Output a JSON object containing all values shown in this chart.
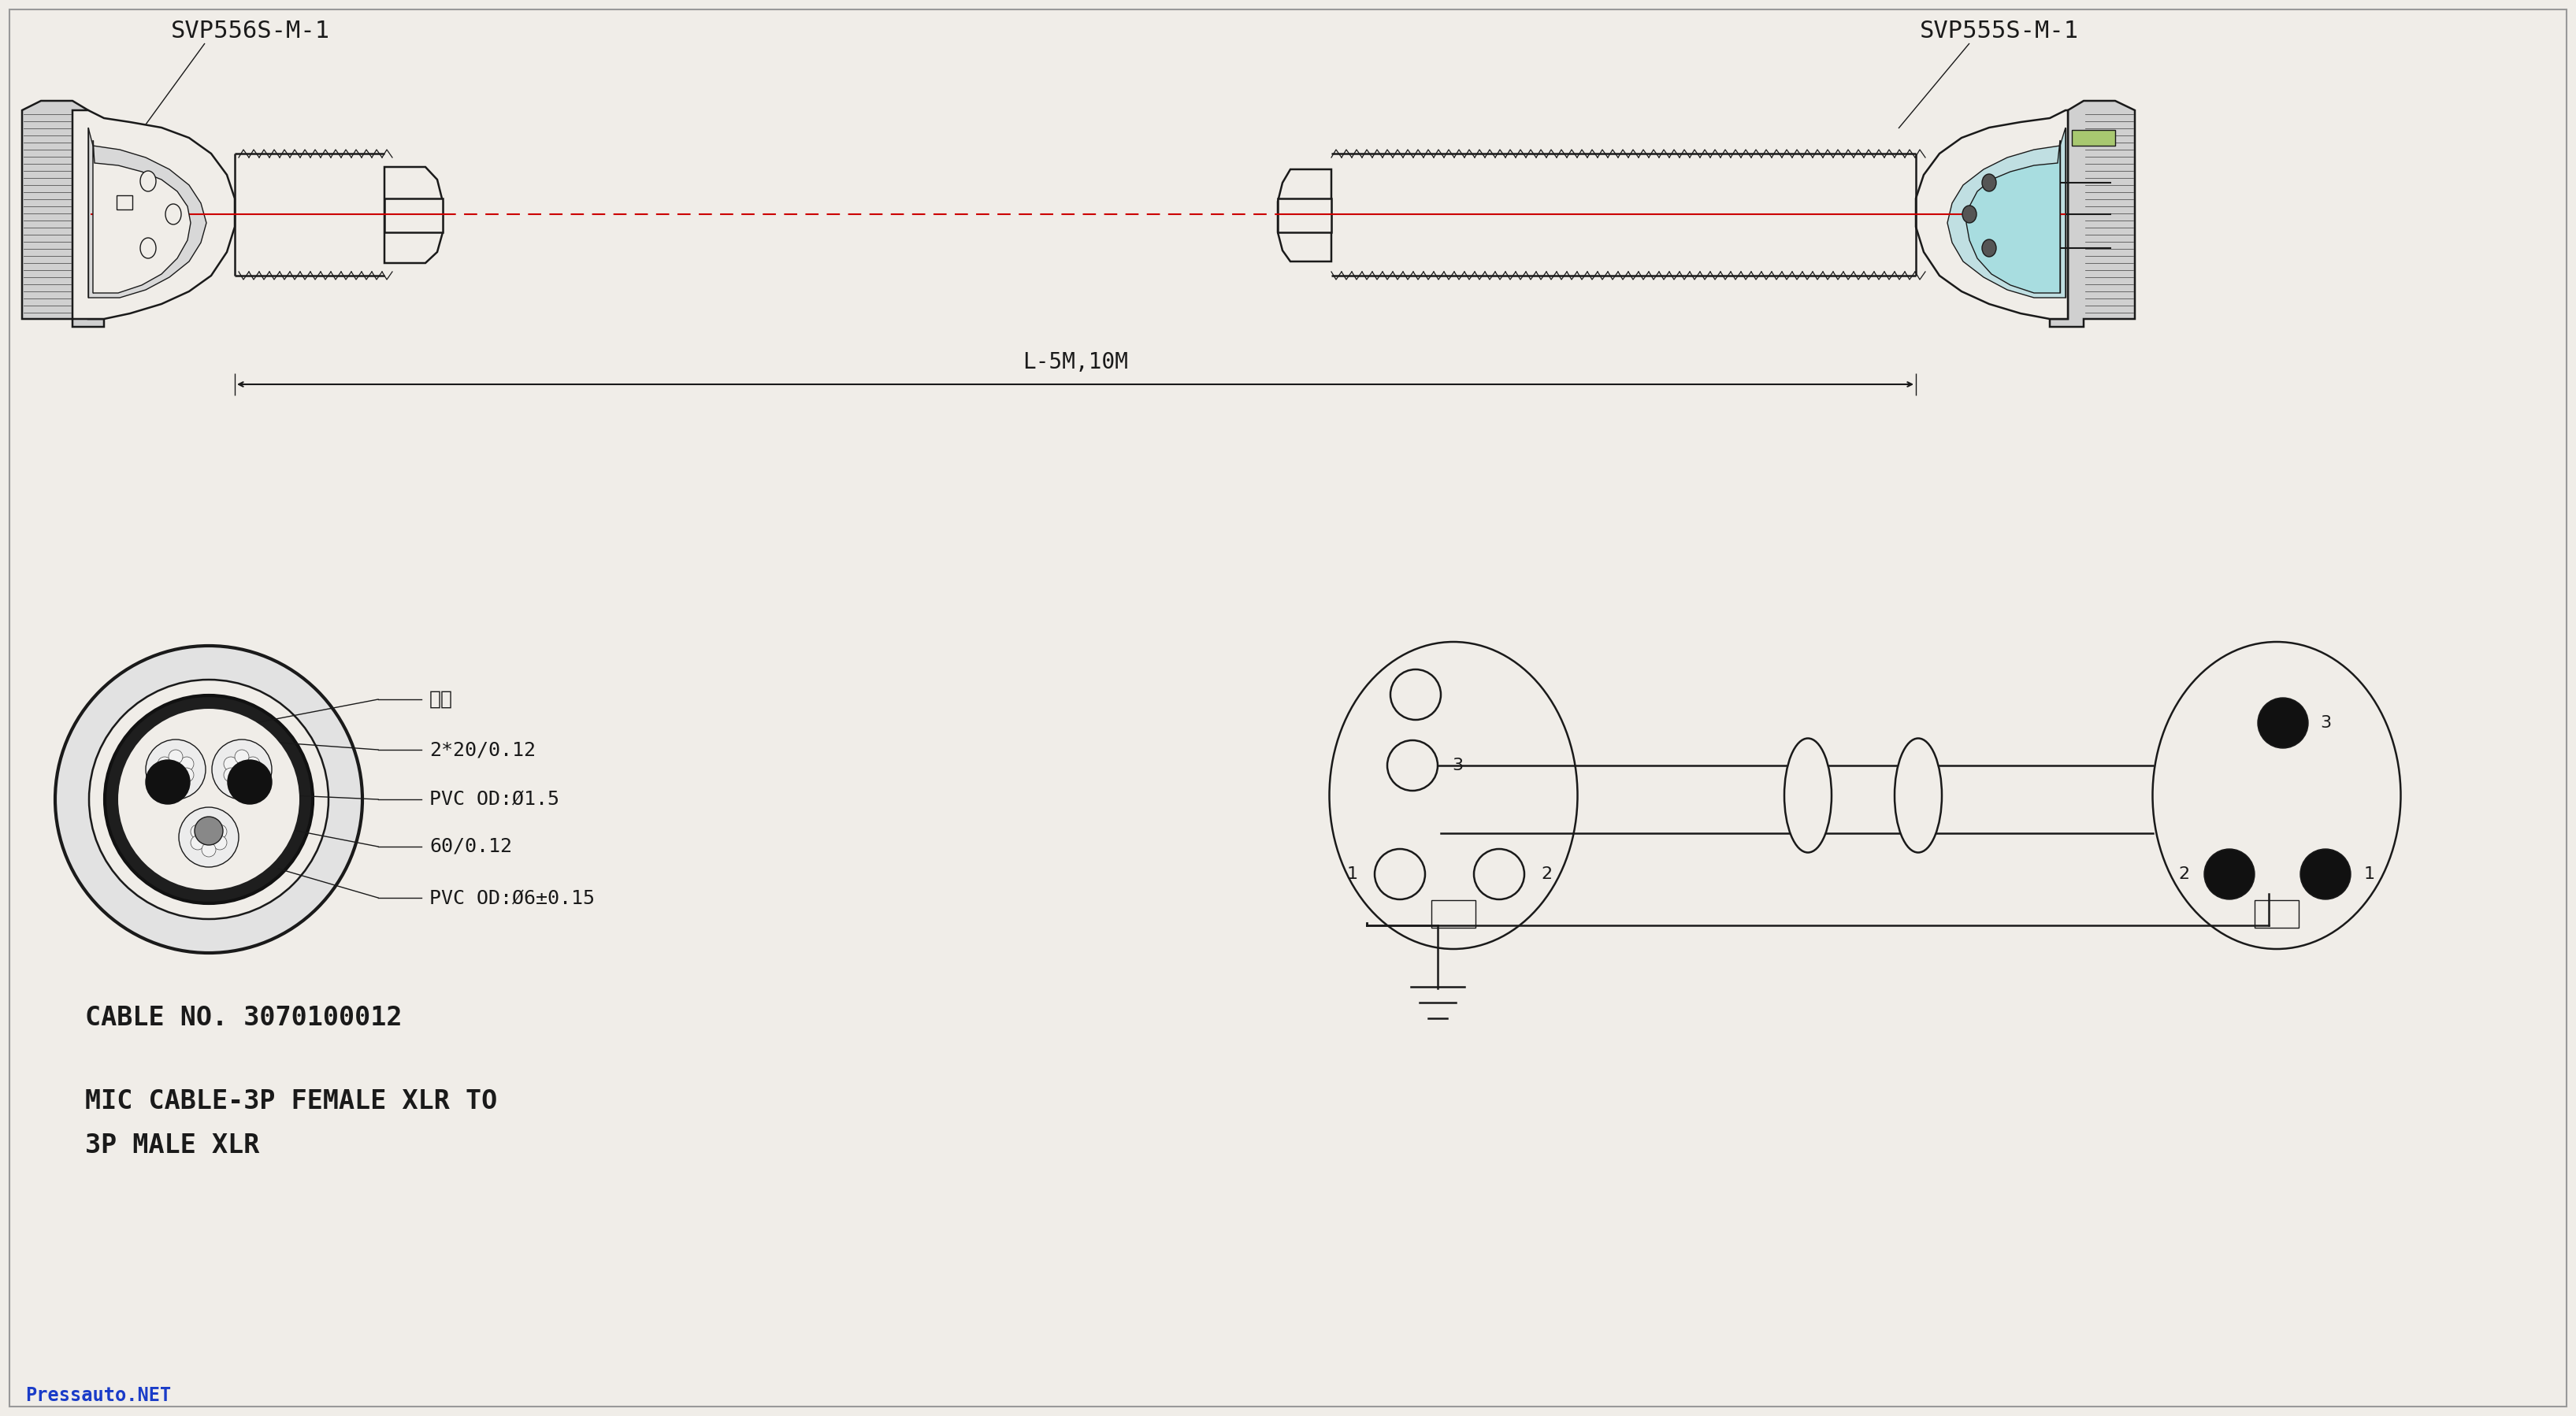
{
  "bg_color": "#f0ede8",
  "line_color": "#1a1a1a",
  "red_line_color": "#cc0000",
  "cyan_color": "#a8dde0",
  "green_color": "#a8c870",
  "title_left": "SVP556S-M-1",
  "title_right": "SVP555S-M-1",
  "dim_label": "L-5M,10M",
  "cable_no": "CABLE NO. 3070100012",
  "mic_label1": "MIC CABLE-3P FEMALE XLR TO",
  "mic_label2": "3P MALE XLR",
  "brand": "Pressauto.NET",
  "annotations": [
    "棉线",
    "2*20/0.12",
    "PVC OD:Ø1.5",
    "60/0.12",
    "PVC OD:Ø6±0.15"
  ]
}
